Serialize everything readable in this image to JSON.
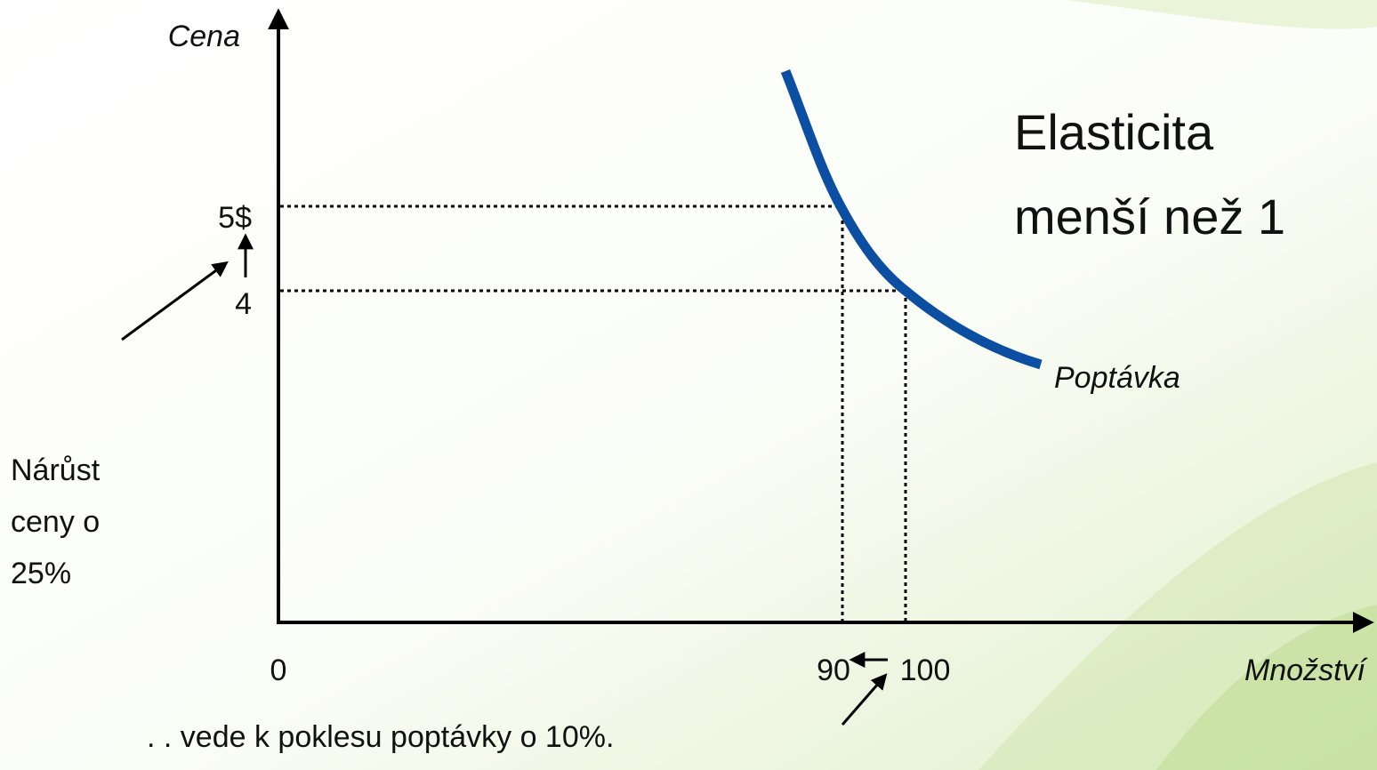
{
  "axes": {
    "y_label": "Cena",
    "x_label": "Množství",
    "origin": "0"
  },
  "ticks": {
    "y": [
      "5$",
      "4"
    ],
    "x": [
      "90",
      "100"
    ]
  },
  "title": [
    "Elasticita",
    "menší než 1"
  ],
  "curve_label": "Poptávka",
  "annotations": {
    "price_increase": [
      "Nárůst",
      "ceny o",
      "25%"
    ],
    "demand_drop": ". . vede k poklesu poptávky o 10%."
  }
}
